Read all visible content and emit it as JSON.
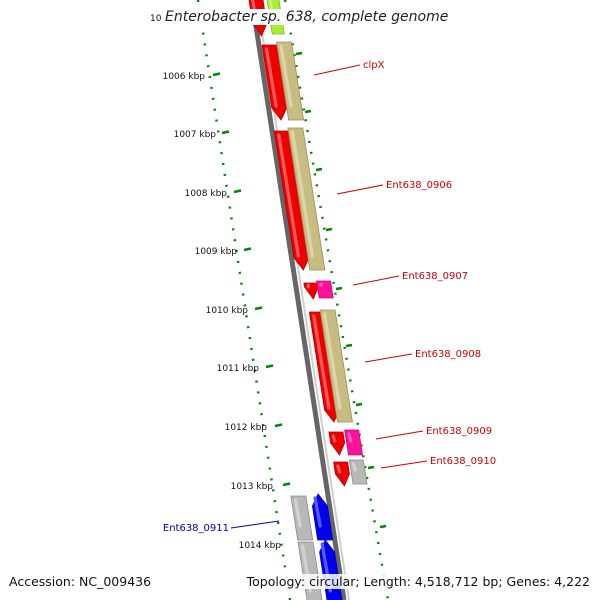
{
  "header": {
    "title": "Enterobacter sp. 638, complete genome",
    "clipped_top_label": "10"
  },
  "footer": {
    "accession": "Accession: NC_009436",
    "summary": "Topology: circular; Length: 4,518,712 bp; Genes: 4,222"
  },
  "scale": {
    "ticks": [
      "1006 kbp",
      "1007 kbp",
      "1008 kbp",
      "1009 kbp",
      "1010 kbp",
      "1011 kbp",
      "1012 kbp",
      "1013 kbp",
      "1014 kbp"
    ]
  },
  "gene_labels": [
    "clpX",
    "Ent638_0906",
    "Ent638_0907",
    "Ent638_0908",
    "Ent638_0909",
    "Ent638_0910",
    "Ent638_0911"
  ],
  "colors": {
    "cds": "#ee0000",
    "cds_feature_khaki": "#c8bd80",
    "cds_feature_magenta": "#ff1199",
    "cds_feature_gray": "#b8b8b8",
    "cds_highlight_blue": "#0000ee",
    "top_feature_green": "#aaee33",
    "tick_green": "#008800",
    "label_red": "#cc0000",
    "label_blue": "#0000aa",
    "backbone": "#888888"
  }
}
